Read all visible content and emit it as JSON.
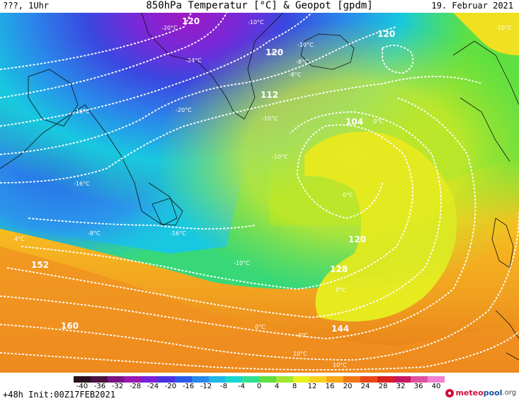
{
  "header": {
    "left": "???, 1Uhr",
    "title": "850hPa Temperatur [°C] & Geopot [gpdm]",
    "right": "19. Februar 2021"
  },
  "footer": {
    "init": "+48h Init:00Z17FEB2021",
    "logo_a": "meteo",
    "logo_b": "pool",
    "logo_c": ".org"
  },
  "scale": {
    "labels": [
      "-40",
      "-36",
      "-32",
      "-28",
      "-24",
      "-20",
      "-16",
      "-12",
      "-8",
      "-4",
      "0",
      "4",
      "8",
      "12",
      "16",
      "20",
      "24",
      "28",
      "32",
      "36",
      "40"
    ],
    "colors": [
      "#2a0f1e",
      "#4a1240",
      "#7a1480",
      "#9a18b0",
      "#7a20d8",
      "#4a30e0",
      "#2a58e8",
      "#2a88ea",
      "#20b8e8",
      "#18d8d0",
      "#30e090",
      "#60e040",
      "#a0e830",
      "#e8f020",
      "#f8d020",
      "#f8a818",
      "#f07818",
      "#e84818",
      "#d82020",
      "#c81860",
      "#e050a0",
      "#f080d0"
    ],
    "tick_values": [
      -40,
      -36,
      -32,
      -28,
      -24,
      -20,
      -16,
      -12,
      -8,
      -4,
      0,
      4,
      8,
      12,
      16,
      20,
      24,
      28,
      32,
      36,
      40
    ]
  },
  "map": {
    "geopot_labels": [
      "120",
      "120",
      "120",
      "112",
      "104",
      "120",
      "128",
      "144",
      "152",
      "160"
    ],
    "temp_labels": [
      "-10°C",
      "-20°C",
      "-24°C",
      "-10°C",
      "-16°C",
      "-20°C",
      "-10°C",
      "-16°C",
      "-10°C",
      "-8°C",
      "-16°C",
      "-10°C",
      "-8°C",
      "0°C",
      "0°C",
      "-10°C",
      "4°C",
      "0°C",
      "0°C",
      "4°C",
      "10°C",
      "10°C",
      "-4°C",
      "-8°C"
    ]
  }
}
